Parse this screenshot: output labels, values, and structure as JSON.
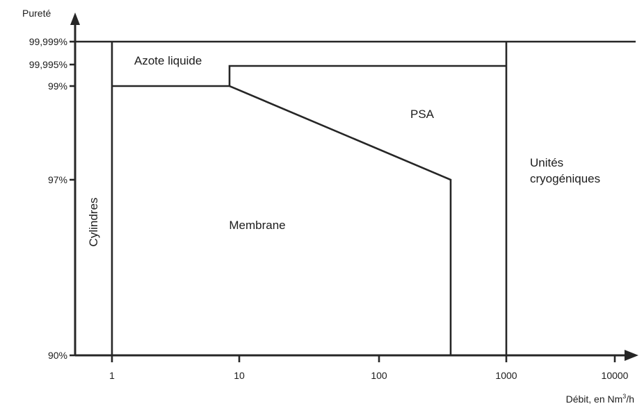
{
  "axes": {
    "y_title": "Pureté",
    "x_title": "Débit, en Nm",
    "x_title_sup": "3",
    "x_title_suffix": "/h"
  },
  "y_ticks": [
    "99,999%",
    "99,995%",
    "99%",
    "97%",
    "90%"
  ],
  "x_ticks": [
    "1",
    "10",
    "100",
    "1000",
    "10000"
  ],
  "regions": {
    "cylinders": "Cylindres",
    "liquid_nitrogen": "Azote liquide",
    "psa": "PSA",
    "membrane": "Membrane",
    "cryogenic_line1": "Unités",
    "cryogenic_line2": "cryogéniques"
  },
  "colors": {
    "line": "#262626",
    "text": "#1c1c1c",
    "background": "#ffffff"
  }
}
